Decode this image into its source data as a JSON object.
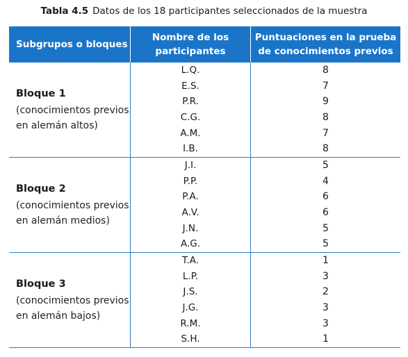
{
  "caption": {
    "number": "Tabla 4.5",
    "text": "Datos de los 18 participantes seleccionados de la muestra"
  },
  "header": {
    "col1": "Subgrupos o bloques",
    "col2": "Nombre de los participantes",
    "col3": "Puntuaciones en la prueba de conocimientos previos"
  },
  "blocks": [
    {
      "title": "Bloque 1",
      "desc": "(conocimientos previos en alemán altos)",
      "rows": [
        {
          "name": "L.Q.",
          "score": "8"
        },
        {
          "name": "E.S.",
          "score": "7"
        },
        {
          "name": "P.R.",
          "score": "9"
        },
        {
          "name": "C.G.",
          "score": "8"
        },
        {
          "name": "A.M.",
          "score": "7"
        },
        {
          "name": "I.B.",
          "score": "8"
        }
      ]
    },
    {
      "title": "Bloque 2",
      "desc": "(conocimientos previos en alemán medios)",
      "rows": [
        {
          "name": "J.I.",
          "score": "5"
        },
        {
          "name": "P.P.",
          "score": "4"
        },
        {
          "name": "P.A.",
          "score": "6"
        },
        {
          "name": "A.V.",
          "score": "6"
        },
        {
          "name": "J.N.",
          "score": "5"
        },
        {
          "name": "A.G.",
          "score": "5"
        }
      ]
    },
    {
      "title": "Bloque 3",
      "desc": "(conocimientos previos en alemán bajos)",
      "rows": [
        {
          "name": "T.A.",
          "score": "1"
        },
        {
          "name": "L.P.",
          "score": "3"
        },
        {
          "name": "J.S.",
          "score": "2"
        },
        {
          "name": "J.G.",
          "score": "3"
        },
        {
          "name": "R.M.",
          "score": "3"
        },
        {
          "name": "S.H.",
          "score": "1"
        }
      ]
    }
  ]
}
